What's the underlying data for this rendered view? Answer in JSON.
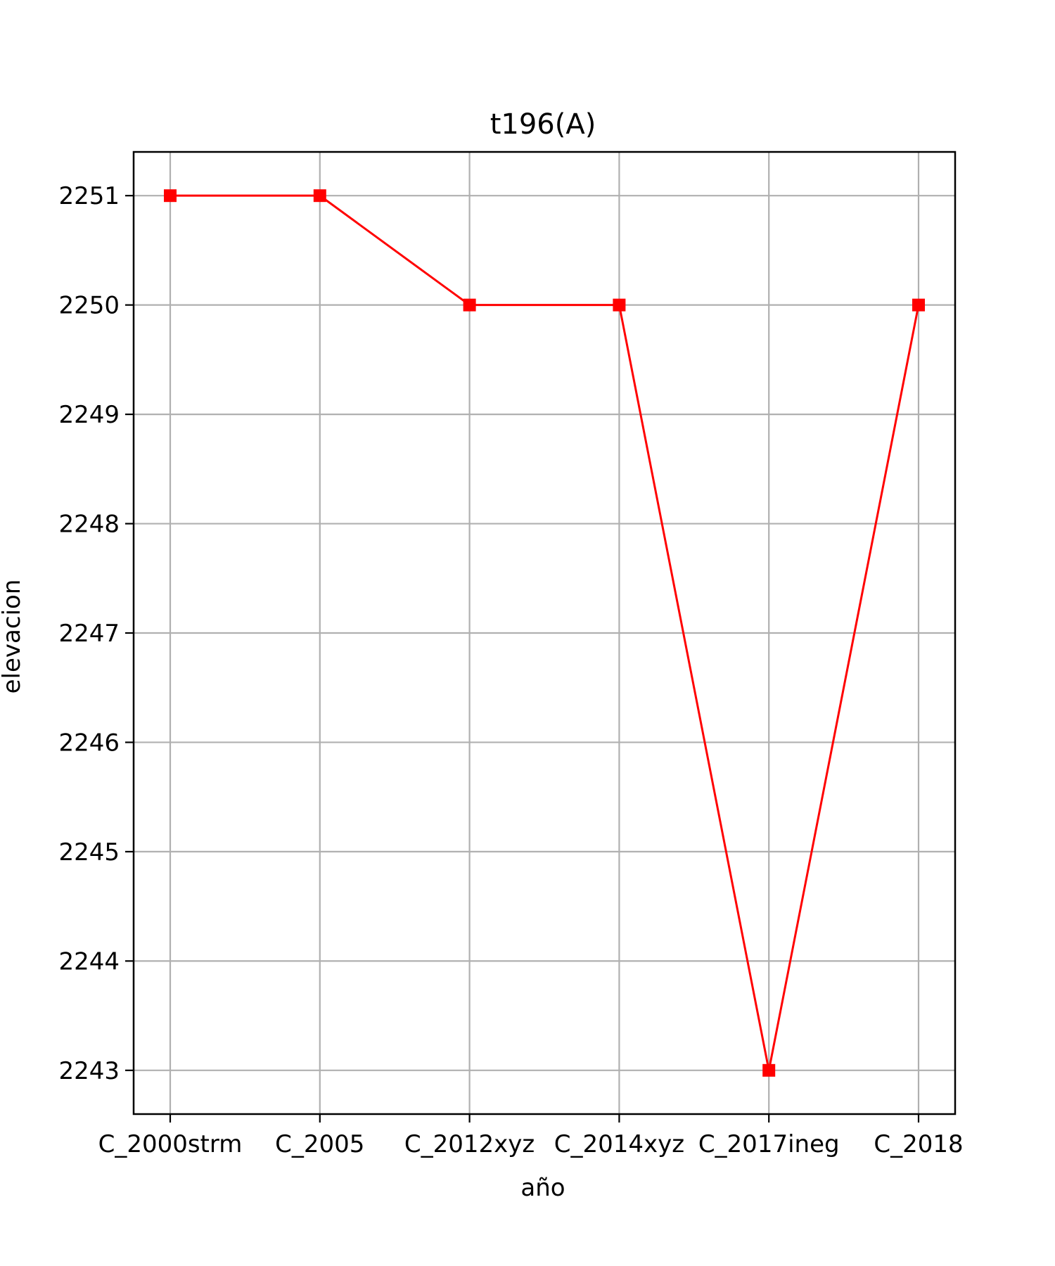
{
  "chart_data": {
    "type": "line",
    "title": "t196(A)",
    "xlabel": "año",
    "ylabel": "elevacion",
    "categories": [
      "C_2000strm",
      "C_2005",
      "C_2012xyz",
      "C_2014xyz",
      "C_2017ineg",
      "C_2018"
    ],
    "series": [
      {
        "values": [
          2251,
          2251,
          2250,
          2250,
          2243,
          2250
        ],
        "color": "#ff0000",
        "marker": "square"
      }
    ],
    "yticks": [
      2243,
      2244,
      2245,
      2246,
      2247,
      2248,
      2249,
      2250,
      2251
    ],
    "ylim": [
      2242.6,
      2251.4
    ],
    "grid": true
  }
}
